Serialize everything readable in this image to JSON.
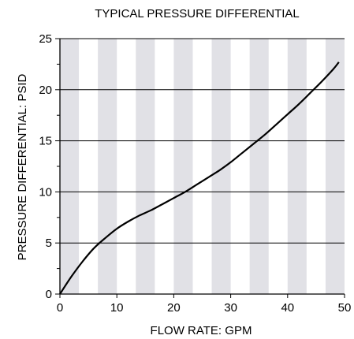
{
  "chart_data": {
    "type": "line",
    "title": "TYPICAL PRESSURE DIFFERENTIAL",
    "xlabel": "FLOW RATE: GPM",
    "ylabel": "PRESSURE DIFFERENTIAL: PSID",
    "xlim": [
      0,
      50
    ],
    "ylim": [
      0,
      25
    ],
    "xticks": [
      "0",
      "10",
      "20",
      "30",
      "40",
      "50"
    ],
    "yticks": [
      "0",
      "5",
      "10",
      "15",
      "20",
      "25"
    ],
    "grid": "horizontal lines at major y ticks; alternating vertical gray bands",
    "band_color": "#e1e1e6",
    "line_color": "#000000",
    "series": [
      {
        "x": [
          0,
          2,
          4,
          6,
          8,
          10,
          12,
          14,
          16,
          18,
          20,
          22,
          24,
          26,
          28,
          30,
          32,
          34,
          36,
          38,
          40,
          42,
          44,
          46,
          48,
          49
        ],
        "y": [
          0,
          1.7,
          3.2,
          4.5,
          5.5,
          6.4,
          7.1,
          7.7,
          8.2,
          8.8,
          9.4,
          10.0,
          10.7,
          11.4,
          12.1,
          12.9,
          13.8,
          14.7,
          15.6,
          16.6,
          17.6,
          18.6,
          19.7,
          20.8,
          22.0,
          22.7
        ]
      }
    ]
  }
}
